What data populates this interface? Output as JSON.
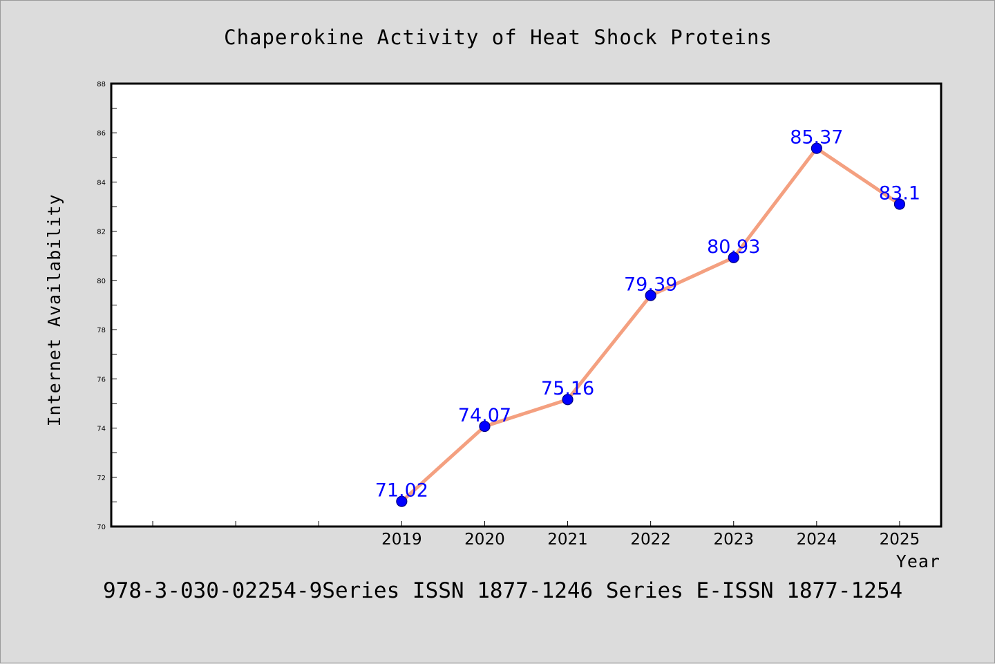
{
  "chart_data": {
    "type": "line",
    "title": "Chaperokine Activity of Heat Shock Proteins",
    "xlabel": "Year",
    "ylabel": "Internet Availability",
    "categories": [
      "2019",
      "2020",
      "2021",
      "2022",
      "2023",
      "2024",
      "2025"
    ],
    "series": [
      {
        "values": [
          71.02,
          74.07,
          75.16,
          79.39,
          80.93,
          85.37,
          83.1
        ]
      }
    ],
    "data_labels": [
      "71.02",
      "74.07",
      "75.16",
      "79.39",
      "80.93",
      "85.37",
      "83.1"
    ],
    "ylim": [
      70,
      88
    ],
    "yticks": [
      "70",
      "72",
      "74",
      "76",
      "78",
      "80",
      "82",
      "84",
      "86",
      "88"
    ],
    "grid": false,
    "colors": {
      "line": "#f4a080",
      "marker": "#0000ff",
      "marker_edge": "#000080",
      "label": "#0000ff",
      "plot_background": "#ffffff",
      "figure_background": "#dcdcdc"
    }
  },
  "footer": {
    "text": "978-3-030-02254-9Series ISSN 1877-1246 Series E-ISSN 1877-1254"
  }
}
